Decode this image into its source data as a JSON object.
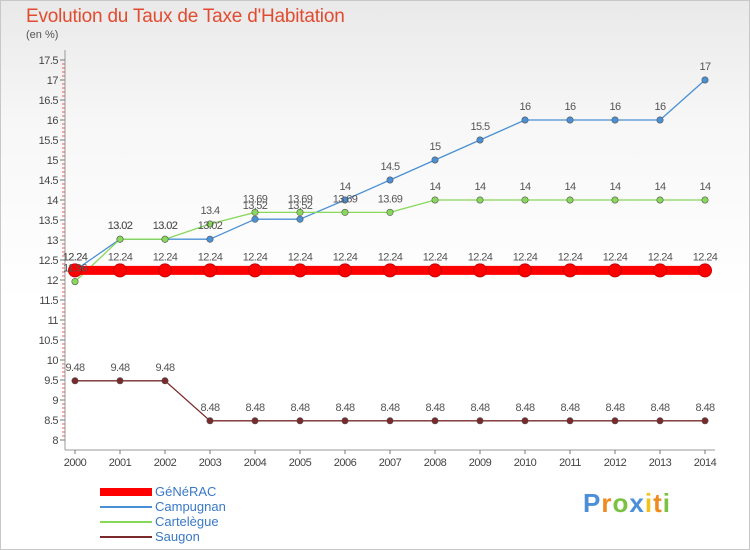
{
  "chart_data": {
    "type": "line",
    "title": "Evolution du Taux de Taxe d'Habitation",
    "subtitle": "(en %)",
    "x": [
      "2000",
      "2001",
      "2002",
      "2003",
      "2004",
      "2005",
      "2006",
      "2007",
      "2008",
      "2009",
      "2010",
      "2011",
      "2012",
      "2013",
      "2014"
    ],
    "yticks": [
      "8",
      "8.5",
      "9",
      "9.5",
      "10",
      "10.5",
      "11",
      "11.5",
      "12",
      "12.5",
      "13",
      "13.5",
      "14",
      "14.5",
      "15",
      "15.5",
      "16",
      "16.5",
      "17",
      "17.5"
    ],
    "ylim": [
      8,
      17.5
    ],
    "grid": false,
    "legend_position": "bottom-left",
    "series": [
      {
        "name": "GéNéRAC",
        "color": "#ff0000",
        "values": [
          12.24,
          12.24,
          12.24,
          12.24,
          12.24,
          12.24,
          12.24,
          12.24,
          12.24,
          12.24,
          12.24,
          12.24,
          12.24,
          12.24,
          12.24
        ],
        "labels": [
          "12.24",
          "12.24",
          "12.24",
          "12.24",
          "12.24",
          "12.24",
          "12.24",
          "12.24",
          "12.24",
          "12.24",
          "12.24",
          "12.24",
          "12.24",
          "12.24",
          "12.24"
        ]
      },
      {
        "name": "Campugnan",
        "color": "#4a90d6",
        "values": [
          12.24,
          13.02,
          13.02,
          13.02,
          13.52,
          13.52,
          14,
          14.5,
          15,
          15.5,
          16,
          16,
          16,
          16,
          17
        ],
        "labels": [
          "12.24",
          "13.02",
          "13.02",
          "13.02",
          "13.52",
          "13.52",
          "14",
          "14.5",
          "15",
          "15.5",
          "16",
          "16",
          "16",
          "16",
          "17"
        ]
      },
      {
        "name": "Cartelègue",
        "color": "#88d85a",
        "values": [
          11.96,
          13.02,
          13.02,
          13.4,
          13.69,
          13.69,
          13.69,
          13.69,
          14,
          14,
          14,
          14,
          14,
          14,
          14
        ],
        "labels": [
          "11.96",
          "13.02",
          "13.02",
          "13.4",
          "13.69",
          "13.69",
          "13.69",
          "13.69",
          "14",
          "14",
          "14",
          "14",
          "14",
          "14",
          "14"
        ]
      },
      {
        "name": "Saugon",
        "color": "#7a2a2a",
        "values": [
          9.48,
          9.48,
          9.48,
          8.48,
          8.48,
          8.48,
          8.48,
          8.48,
          8.48,
          8.48,
          8.48,
          8.48,
          8.48,
          8.48,
          8.48
        ],
        "labels": [
          "9.48",
          "9.48",
          "9.48",
          "8.48",
          "8.48",
          "8.48",
          "8.48",
          "8.48",
          "8.48",
          "8.48",
          "8.48",
          "8.48",
          "8.48",
          "8.48",
          "8.48"
        ]
      }
    ]
  },
  "legend": {
    "items": [
      {
        "label": "GéNéRAC",
        "color": "#ff0000",
        "thick": true
      },
      {
        "label": "Campugnan",
        "color": "#4a90d6",
        "thick": false
      },
      {
        "label": "Cartelègue",
        "color": "#88d85a",
        "thick": false
      },
      {
        "label": "Saugon",
        "color": "#7a2a2a",
        "thick": false
      }
    ]
  },
  "logo": {
    "letters": [
      "P",
      "r",
      "o",
      "x",
      "i",
      "t",
      "i"
    ],
    "colors": [
      "#4a8fd8",
      "#ef8a1e",
      "#7cc242",
      "#4a8fd8",
      "#f2c21b",
      "#ef8a1e",
      "#7cc242"
    ]
  }
}
